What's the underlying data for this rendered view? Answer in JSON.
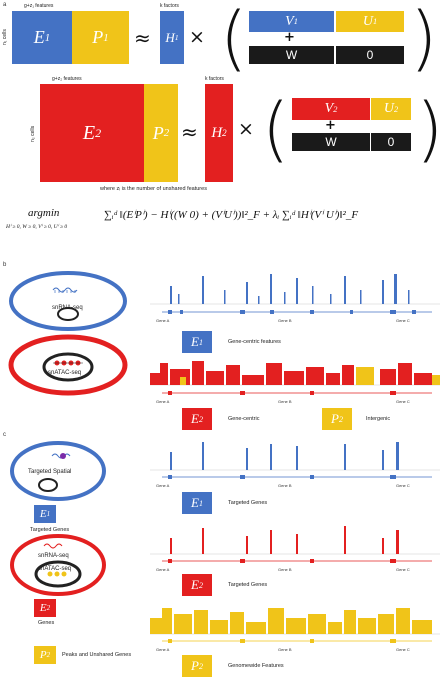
{
  "panel_a": {
    "letter": "a",
    "row1": {
      "features_label": "g+z₁ features",
      "cells_label": "n₁ cells",
      "E": "E",
      "E_sub": "1",
      "P": "P",
      "P_sub": "1",
      "approx": "≈",
      "k_label": "k factors",
      "H": "H",
      "H_sub": "1",
      "times": "×",
      "V": "V",
      "V_sub": "1",
      "U": "U",
      "U_sub": "1",
      "plus": "+",
      "W": "W",
      "zero": "0"
    },
    "row2": {
      "features_label": "g+z₂ features",
      "cells_label": "n₂ cells",
      "E": "E",
      "E_sub": "2",
      "P": "P",
      "P_sub": "2",
      "approx": "≈",
      "k_label": "k factors",
      "H": "H",
      "H_sub": "2",
      "times": "×",
      "V": "V",
      "V_sub": "2",
      "U": "U",
      "U_sub": "2",
      "plus": "+",
      "W": "W",
      "zero": "0"
    },
    "footnote": "where zᵢ is the number of unshared features",
    "objective": {
      "argmin": "argmin",
      "constraint": "Hⁱ ≥ 0, W ≥ 0, Vⁱ ≥ 0, Uⁱ ≥ 0",
      "body": "∑ᵢᵈ ‖(EⁱPⁱ) − Hⁱ((W 0) + (VⁱUⁱ))‖²_F + λᵢ ∑ᵢᵈ ‖Hⁱ(Vⁱ Uⁱ)‖²_F"
    }
  },
  "panel_b": {
    "letter": "b",
    "cell1_label": "snRNA-seq",
    "cell2_label": "snATAC-seq",
    "track1": {
      "genes": [
        "Gene A",
        "Gene B",
        "Gene C"
      ],
      "badge": "E",
      "badge_sub": "1",
      "caption": "Gene-centric features"
    },
    "track2": {
      "genes": [
        "Gene A",
        "Gene B",
        "Gene C"
      ],
      "badge": "E",
      "badge_sub": "2",
      "caption": "Gene-centric",
      "badge2": "P",
      "badge2_sub": "2",
      "caption2": "Intergenic"
    }
  },
  "panel_c": {
    "letter": "c",
    "cell1_label": "Targeted Spatial",
    "badge1": "E",
    "badge1_sub": "1",
    "badge1_caption": "Targeted Genes",
    "cell2_label_top": "snRNA-seq",
    "cell2_label_bottom": "snATAC-seq",
    "badge2": "E",
    "badge2_sub": "2",
    "badge2_caption": "Genes",
    "badge3": "P",
    "badge3_sub": "2",
    "badge3_caption": "Peaks and Unshared Genes",
    "track1": {
      "genes": [
        "Gene A",
        "Gene B",
        "Gene C"
      ],
      "badge": "E",
      "badge_sub": "1",
      "caption": "Targeted Genes"
    },
    "track2": {
      "genes": [
        "Gene A",
        "Gene B",
        "Gene C"
      ],
      "badge": "E",
      "badge_sub": "2",
      "caption": "Targeted Genes"
    },
    "track3": {
      "genes": [
        "Gene A",
        "Gene B",
        "Gene C"
      ],
      "badge": "P",
      "badge_sub": "2",
      "caption": "Genomewide Features"
    }
  },
  "colors": {
    "blue": "#4472c4",
    "yellow": "#f0c419",
    "red": "#e32020",
    "black": "#1a1a1a",
    "dark_blue_cell": "#2f4f8f",
    "dark_red_cell": "#b01818"
  }
}
